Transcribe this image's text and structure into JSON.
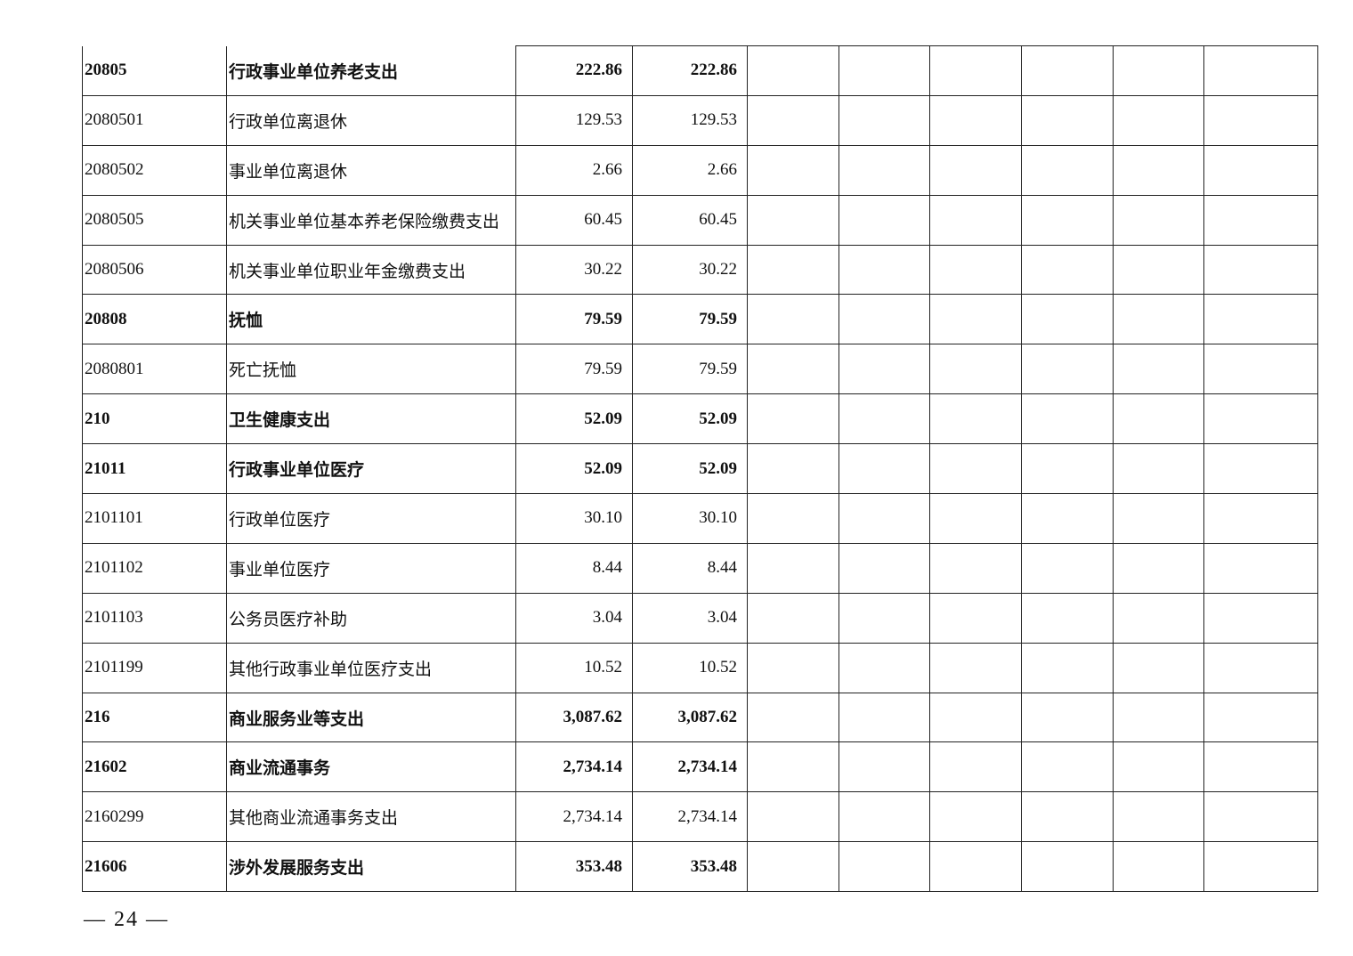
{
  "rows": [
    {
      "code": "20805",
      "name": "行政事业单位养老支出",
      "v1": "222.86",
      "v2": "222.86",
      "bold": true
    },
    {
      "code": "2080501",
      "name": "行政单位离退休",
      "v1": "129.53",
      "v2": "129.53",
      "bold": false
    },
    {
      "code": "2080502",
      "name": "事业单位离退休",
      "v1": "2.66",
      "v2": "2.66",
      "bold": false
    },
    {
      "code": "2080505",
      "name": "机关事业单位基本养老保险缴费支出",
      "v1": "60.45",
      "v2": "60.45",
      "bold": false
    },
    {
      "code": "2080506",
      "name": "机关事业单位职业年金缴费支出",
      "v1": "30.22",
      "v2": "30.22",
      "bold": false
    },
    {
      "code": "20808",
      "name": "抚恤",
      "v1": "79.59",
      "v2": "79.59",
      "bold": true
    },
    {
      "code": "2080801",
      "name": "死亡抚恤",
      "v1": "79.59",
      "v2": "79.59",
      "bold": false
    },
    {
      "code": "210",
      "name": "卫生健康支出",
      "v1": "52.09",
      "v2": "52.09",
      "bold": true
    },
    {
      "code": "21011",
      "name": "行政事业单位医疗",
      "v1": "52.09",
      "v2": "52.09",
      "bold": true
    },
    {
      "code": "2101101",
      "name": "行政单位医疗",
      "v1": "30.10",
      "v2": "30.10",
      "bold": false
    },
    {
      "code": "2101102",
      "name": "事业单位医疗",
      "v1": "8.44",
      "v2": "8.44",
      "bold": false
    },
    {
      "code": "2101103",
      "name": "公务员医疗补助",
      "v1": "3.04",
      "v2": "3.04",
      "bold": false
    },
    {
      "code": "2101199",
      "name": "其他行政事业单位医疗支出",
      "v1": "10.52",
      "v2": "10.52",
      "bold": false
    },
    {
      "code": "216",
      "name": "商业服务业等支出",
      "v1": "3,087.62",
      "v2": "3,087.62",
      "bold": true
    },
    {
      "code": "21602",
      "name": "商业流通事务",
      "v1": "2,734.14",
      "v2": "2,734.14",
      "bold": true
    },
    {
      "code": "2160299",
      "name": "其他商业流通事务支出",
      "v1": "2,734.14",
      "v2": "2,734.14",
      "bold": false
    },
    {
      "code": "21606",
      "name": "涉外发展服务支出",
      "v1": "353.48",
      "v2": "353.48",
      "bold": true
    }
  ],
  "page_number": "— 24 —"
}
